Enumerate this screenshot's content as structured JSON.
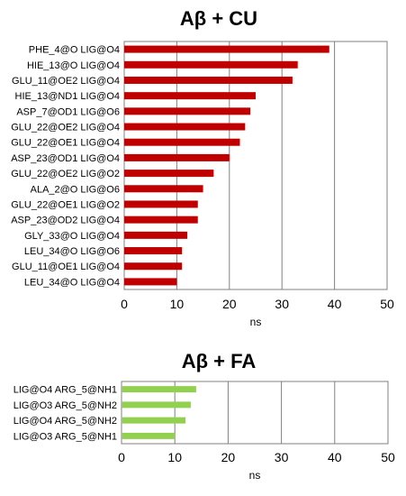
{
  "chart_data": [
    {
      "type": "bar",
      "orientation": "horizontal",
      "title": "Aβ + CU",
      "xlabel": "ns",
      "ylabel": "",
      "xlim": [
        0,
        50
      ],
      "xticks": [
        "0",
        "10",
        "20",
        "30",
        "40",
        "50"
      ],
      "grid": "vertical",
      "color": "#c00000",
      "categories": [
        "PHE_4@O LIG@O4",
        "HIE_13@O LIG@O4",
        "GLU_11@OE2 LIG@O4",
        "HIE_13@ND1 LIG@O4",
        "ASP_7@OD1 LIG@O6",
        "GLU_22@OE2 LIG@O4",
        "GLU_22@OE1 LIG@O4",
        "ASP_23@OD1 LIG@O4",
        "GLU_22@OE2 LIG@O2",
        "ALA_2@O LIG@O6",
        "GLU_22@OE1 LIG@O2",
        "ASP_23@OD2 LIG@O4",
        "GLY_33@O LIG@O4",
        "LEU_34@O LIG@O6",
        "GLU_11@OE1 LIG@O4",
        "LEU_34@O LIG@O4"
      ],
      "values": [
        39,
        33,
        32,
        25,
        24,
        23,
        22,
        20,
        17,
        15,
        14,
        14,
        12,
        11,
        11,
        10
      ]
    },
    {
      "type": "bar",
      "orientation": "horizontal",
      "title": "Aβ + FA",
      "xlabel": "ns",
      "ylabel": "",
      "xlim": [
        0,
        50
      ],
      "xticks": [
        "0",
        "10",
        "20",
        "30",
        "40",
        "50"
      ],
      "grid": "vertical",
      "color": "#92d050",
      "categories": [
        "LIG@O4 ARG_5@NH1",
        "LIG@O3 ARG_5@NH2",
        "LIG@O4 ARG_5@NH2",
        "LIG@O3 ARG_5@NH1"
      ],
      "values": [
        14,
        13,
        12,
        10
      ]
    }
  ]
}
